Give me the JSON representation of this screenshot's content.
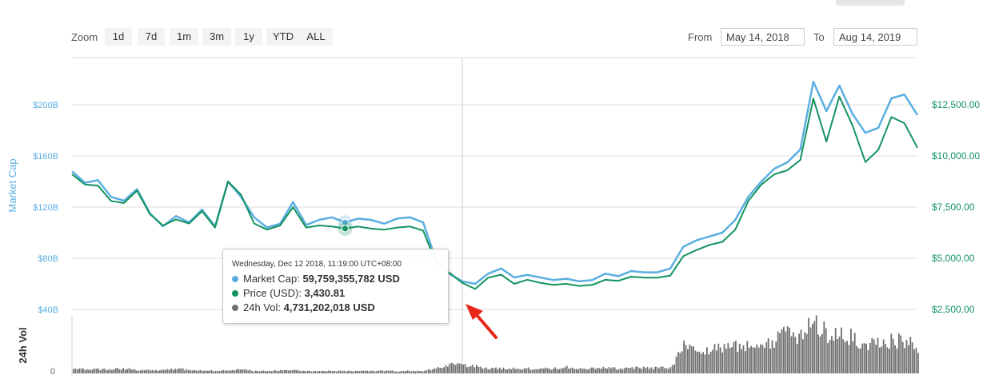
{
  "zoom": {
    "label": "Zoom",
    "buttons": [
      "1d",
      "7d",
      "1m",
      "3m",
      "1y",
      "YTD",
      "ALL"
    ]
  },
  "range": {
    "from_label": "From",
    "from_value": "May 14, 2018",
    "to_label": "To",
    "to_value": "Aug 14, 2019"
  },
  "tooltip": {
    "date": "Wednesday, Dec 12 2018, 11:19:00 UTC+08:00",
    "market_cap_label": "Market Cap:",
    "market_cap_value": "59,759,355,782 USD",
    "price_label": "Price (USD):",
    "price_value": "3,430.81",
    "volume_label": "24h Vol:",
    "volume_value": "4,731,202,018 USD"
  },
  "colors": {
    "market_cap": "#5aaee0",
    "price": "#12935f",
    "volume": "#6f6f6f",
    "annotation_arrow": "#e8251b"
  },
  "chart_data": {
    "type": "line",
    "y_left": {
      "label": "Market Cap",
      "ticks": [
        "$40B",
        "$80B",
        "$120B",
        "$160B",
        "$200B"
      ],
      "tick_values": [
        40,
        80,
        120,
        160,
        200
      ],
      "unit": "USD billions"
    },
    "y_right": {
      "ticks": [
        "$2,500.00",
        "$5,000.00",
        "$7,500.00",
        "$10,000.00",
        "$12,500.00"
      ],
      "tick_values": [
        2500,
        5000,
        7500,
        10000,
        12500
      ]
    },
    "y_volume": {
      "label": "24h Vol",
      "ticks": [
        "0"
      ]
    },
    "x_range": [
      "May 14, 2018",
      "Aug 14, 2019"
    ],
    "grid": true,
    "highlight_index": 21,
    "series": [
      {
        "name": "Market Cap",
        "axis": "left",
        "values": [
          148,
          139,
          141,
          128,
          125,
          134,
          115,
          105,
          113,
          108,
          118,
          105,
          140,
          128,
          112,
          104,
          107,
          124,
          106,
          110,
          112,
          108,
          111,
          110,
          107,
          111,
          112,
          108,
          78,
          68,
          62,
          60,
          68,
          72,
          65,
          67,
          65,
          63,
          64,
          62,
          63,
          68,
          66,
          70,
          69,
          69,
          72,
          89,
          94,
          97,
          100,
          110,
          128,
          140,
          150,
          155,
          165,
          218,
          195,
          215,
          193,
          178,
          182,
          205,
          208,
          192
        ]
      },
      {
        "name": "Price (USD)",
        "axis": "right",
        "values": [
          9100,
          8600,
          8550,
          7800,
          7700,
          8300,
          7150,
          6600,
          6900,
          6700,
          7300,
          6500,
          8750,
          8100,
          6700,
          6400,
          6600,
          7500,
          6500,
          6600,
          6550,
          6450,
          6550,
          6450,
          6400,
          6500,
          6550,
          6350,
          4750,
          4300,
          3800,
          3500,
          4050,
          4200,
          3750,
          3950,
          3800,
          3700,
          3750,
          3650,
          3700,
          3950,
          3900,
          4100,
          4050,
          4050,
          4150,
          5100,
          5400,
          5650,
          5800,
          6400,
          7800,
          8600,
          9100,
          9300,
          9800,
          12800,
          10700,
          12900,
          11500,
          9700,
          10300,
          11900,
          11600,
          10400
        ]
      },
      {
        "name": "24h Vol",
        "axis": "volume",
        "values": [
          0.7,
          0.5,
          0.5,
          0.5,
          0.6,
          0.4,
          0.4,
          0.4,
          0.6,
          0.4,
          0.4,
          0.3,
          0.4,
          0.5,
          0.3,
          0.3,
          0.4,
          0.4,
          0.3,
          0.3,
          0.3,
          0.3,
          0.3,
          0.3,
          0.3,
          0.3,
          0.3,
          0.3,
          0.7,
          1.1,
          1.0,
          0.9,
          0.6,
          0.6,
          0.6,
          0.6,
          0.6,
          0.6,
          0.8,
          0.6,
          0.6,
          0.7,
          0.6,
          0.7,
          0.7,
          0.7,
          0.7,
          3.4,
          2.8,
          3.2,
          3.0,
          3.6,
          3.2,
          3.6,
          4.0,
          5.0,
          4.6,
          6.8,
          4.8,
          5.2,
          4.4,
          3.8,
          3.8,
          4.0,
          4.0,
          3.2
        ]
      }
    ]
  }
}
